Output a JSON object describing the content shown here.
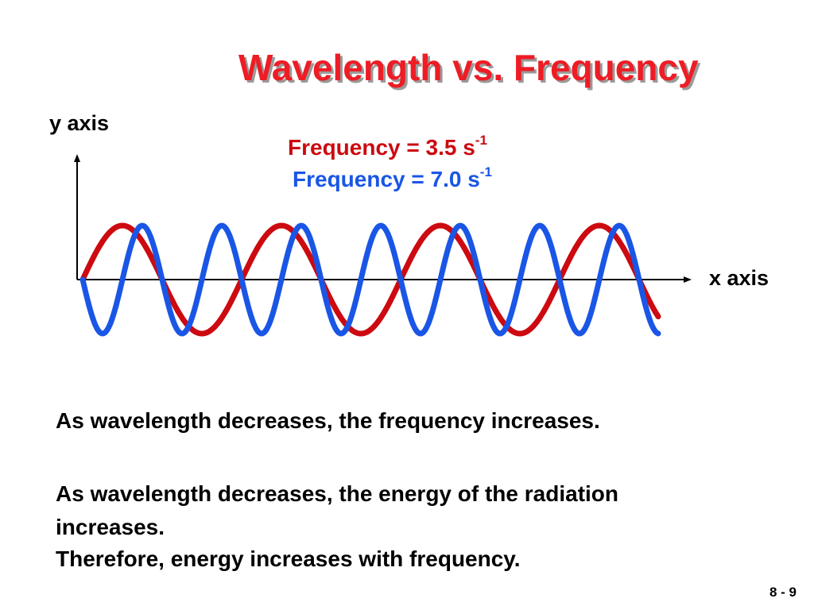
{
  "slide": {
    "title": "Wavelength vs. Frequency",
    "page_number": "8 - 9"
  },
  "colors": {
    "title": "#ee1c25",
    "red_wave": "#cc0a10",
    "blue_wave": "#1a56e6",
    "axis": "#000000"
  },
  "graph": {
    "y_axis_label": "y axis",
    "x_axis_label": "x axis",
    "red_wave": {
      "label_text": "Frequency = 3.5 s",
      "label_exponent": "-1",
      "frequency": 3.5,
      "unit": "s-1"
    },
    "blue_wave": {
      "label_text": "Frequency = 7.0 s",
      "label_exponent": "-1",
      "frequency": 7.0,
      "unit": "s-1"
    }
  },
  "statements": [
    "As wavelength decreases, the frequency increases.",
    "As wavelength decreases, the energy of  the radiation",
    "increases.",
    "Therefore, energy increases with frequency."
  ]
}
